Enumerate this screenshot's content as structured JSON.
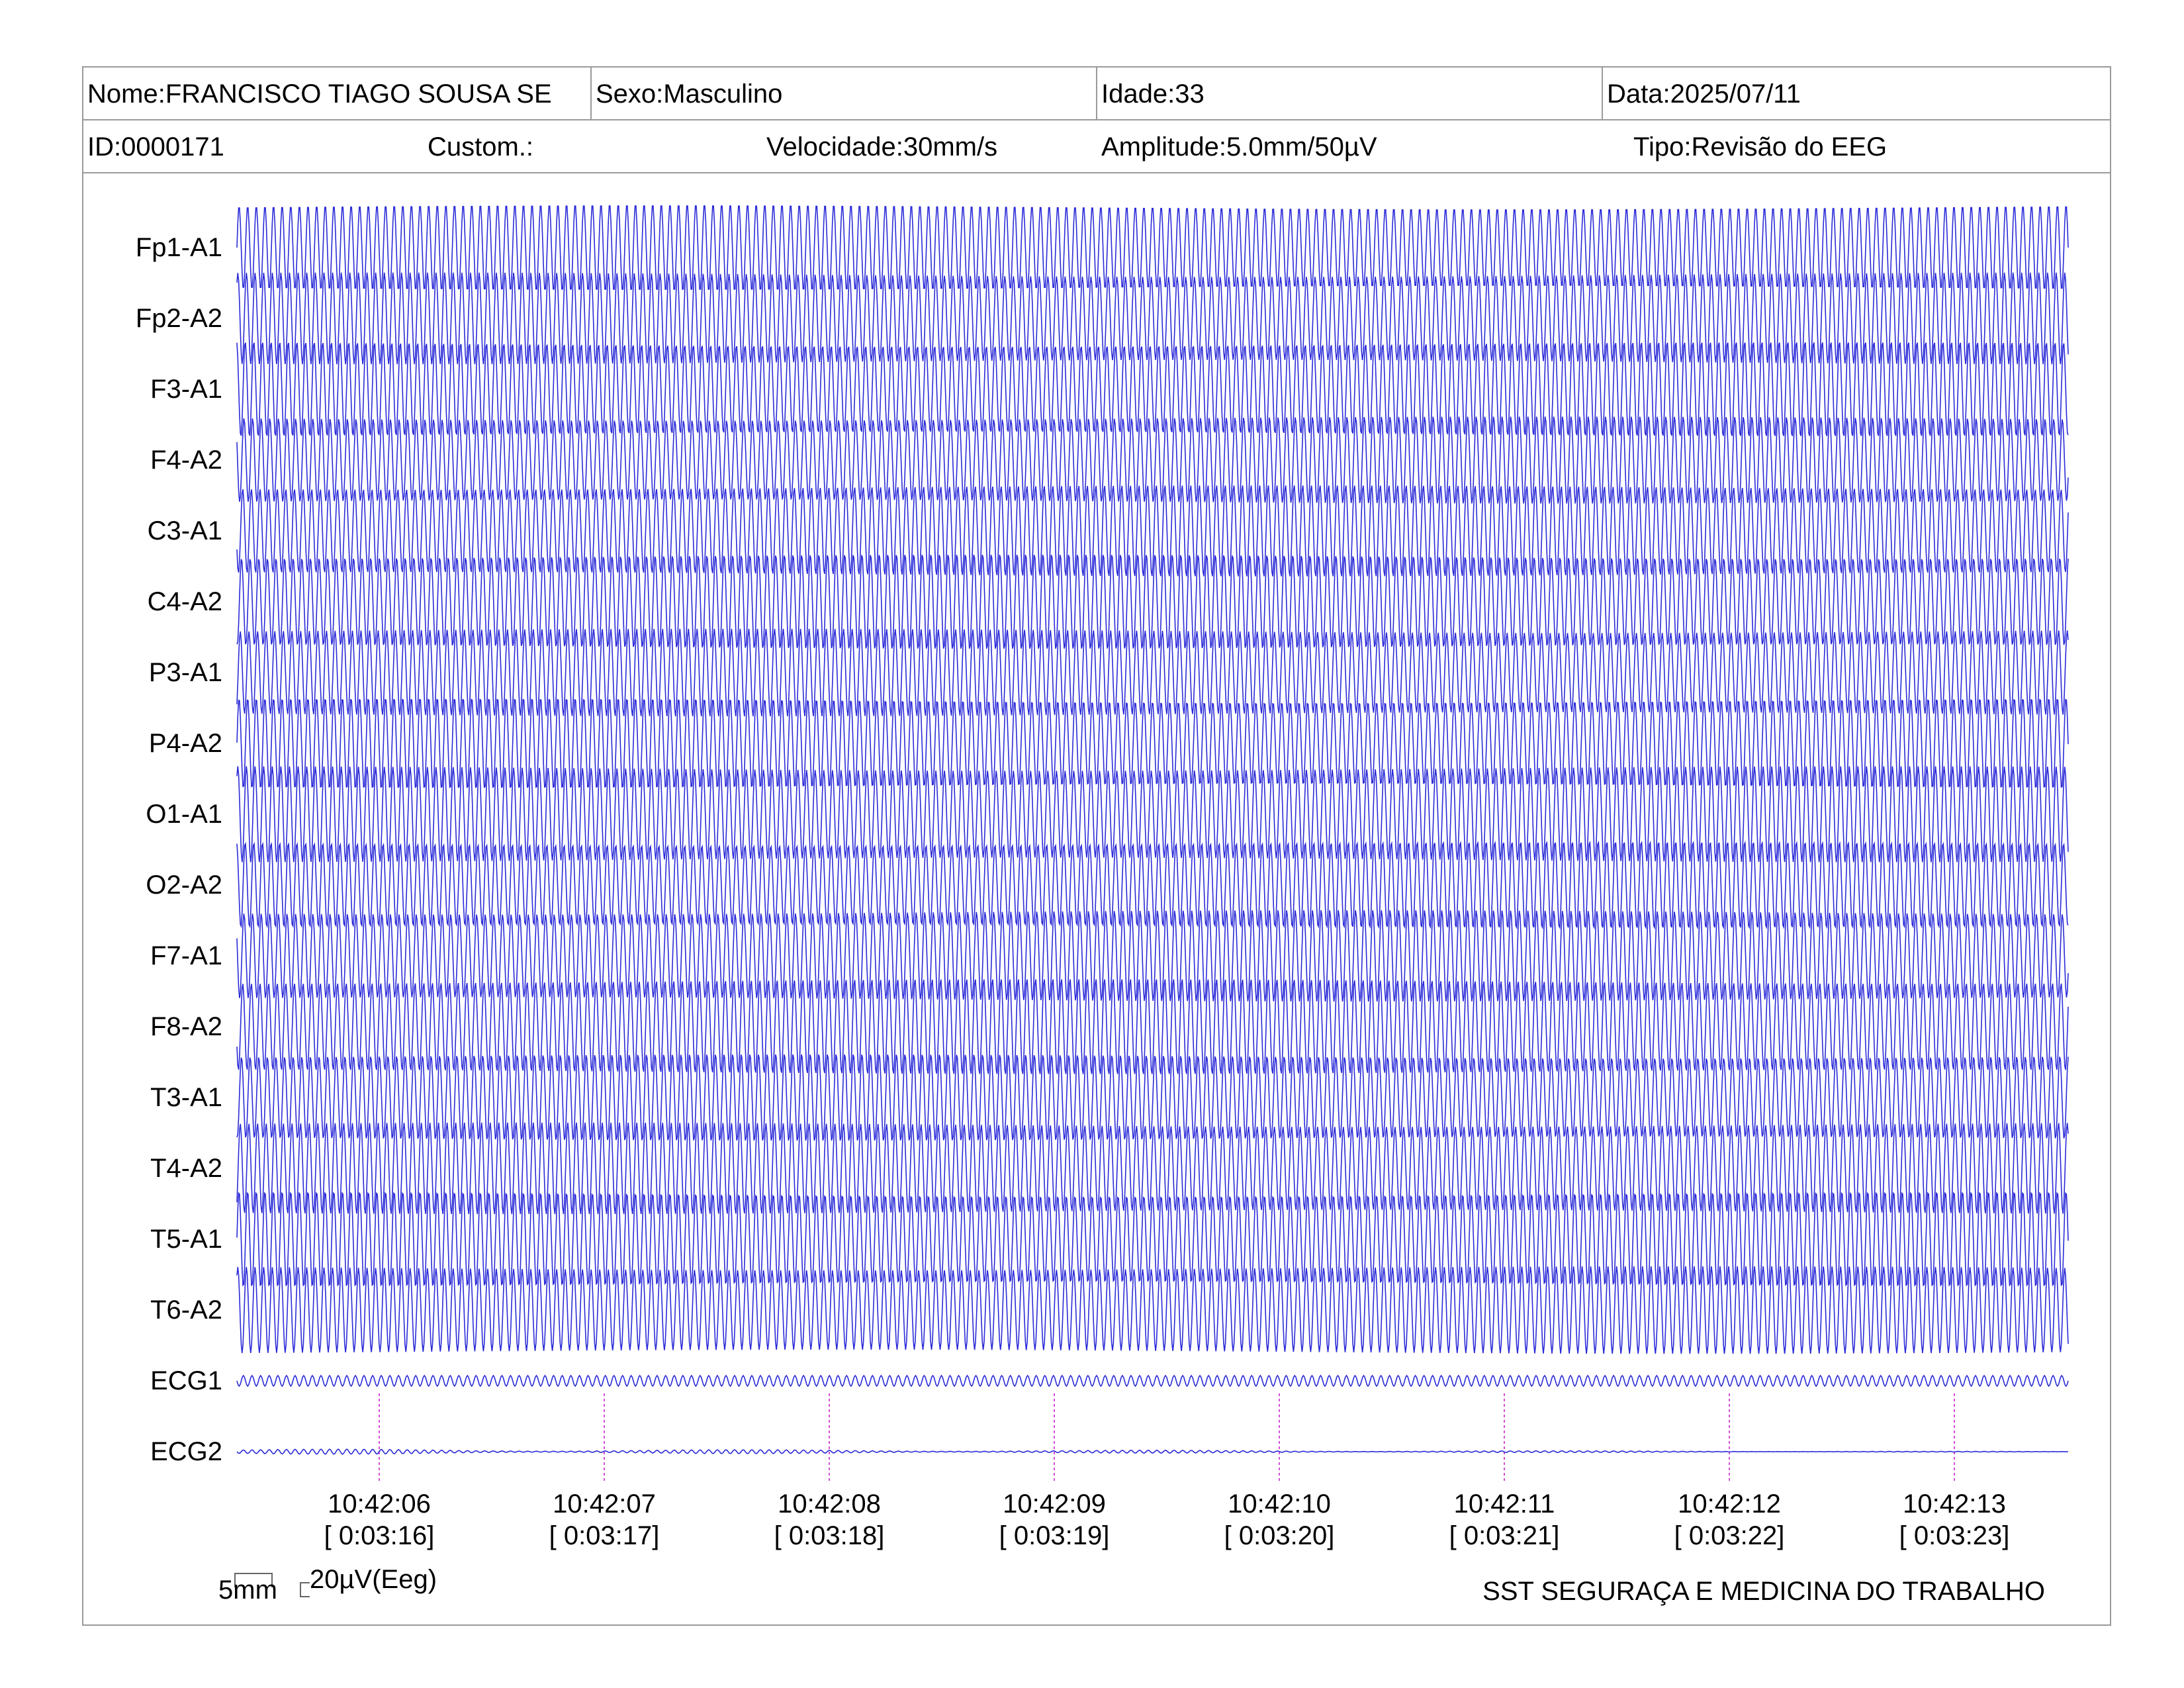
{
  "header": {
    "name": "Nome:FRANCISCO TIAGO SOUSA SE",
    "sex": "Sexo:Masculino",
    "age": "Idade:33",
    "date": "Data:2025/07/11",
    "id": "ID:0000171",
    "custom": "Custom.:",
    "speed": "Velocidade:30mm/s",
    "amplitude": "Amplitude:5.0mm/50µV",
    "type": "Tipo:Revisão do EEG"
  },
  "chart_data": {
    "type": "line",
    "channels": [
      "Fp1-A1",
      "Fp2-A2",
      "F3-A1",
      "F4-A2",
      "C3-A1",
      "C4-A2",
      "P3-A1",
      "P4-A2",
      "O1-A1",
      "O2-A2",
      "F7-A1",
      "F8-A2",
      "T3-A1",
      "T4-A2",
      "T5-A1",
      "T6-A2",
      "ECG1",
      "ECG2"
    ],
    "time_labels": [
      {
        "clock": "10:42:06",
        "elapsed": "[ 0:03:16]"
      },
      {
        "clock": "10:42:07",
        "elapsed": "[ 0:03:17]"
      },
      {
        "clock": "10:42:08",
        "elapsed": "[ 0:03:18]"
      },
      {
        "clock": "10:42:09",
        "elapsed": "[ 0:03:19]"
      },
      {
        "clock": "10:42:10",
        "elapsed": "[ 0:03:20]"
      },
      {
        "clock": "10:42:11",
        "elapsed": "[ 0:03:21]"
      },
      {
        "clock": "10:42:12",
        "elapsed": "[ 0:03:22]"
      },
      {
        "clock": "10:42:13",
        "elapsed": "[ 0:03:23]"
      }
    ],
    "x_range_seconds": [
      0,
      8.5
    ],
    "eeg_frequency_hz": 25,
    "trace_color": "#2b2bd8",
    "marker_color": "#d34fd3",
    "grid": false
  },
  "scale": {
    "time": "5mm",
    "amplitude": "20µV(Eeg)"
  },
  "footer": {
    "company": "SST SEGURAÇA E MEDICINA DO TRABALHO"
  }
}
